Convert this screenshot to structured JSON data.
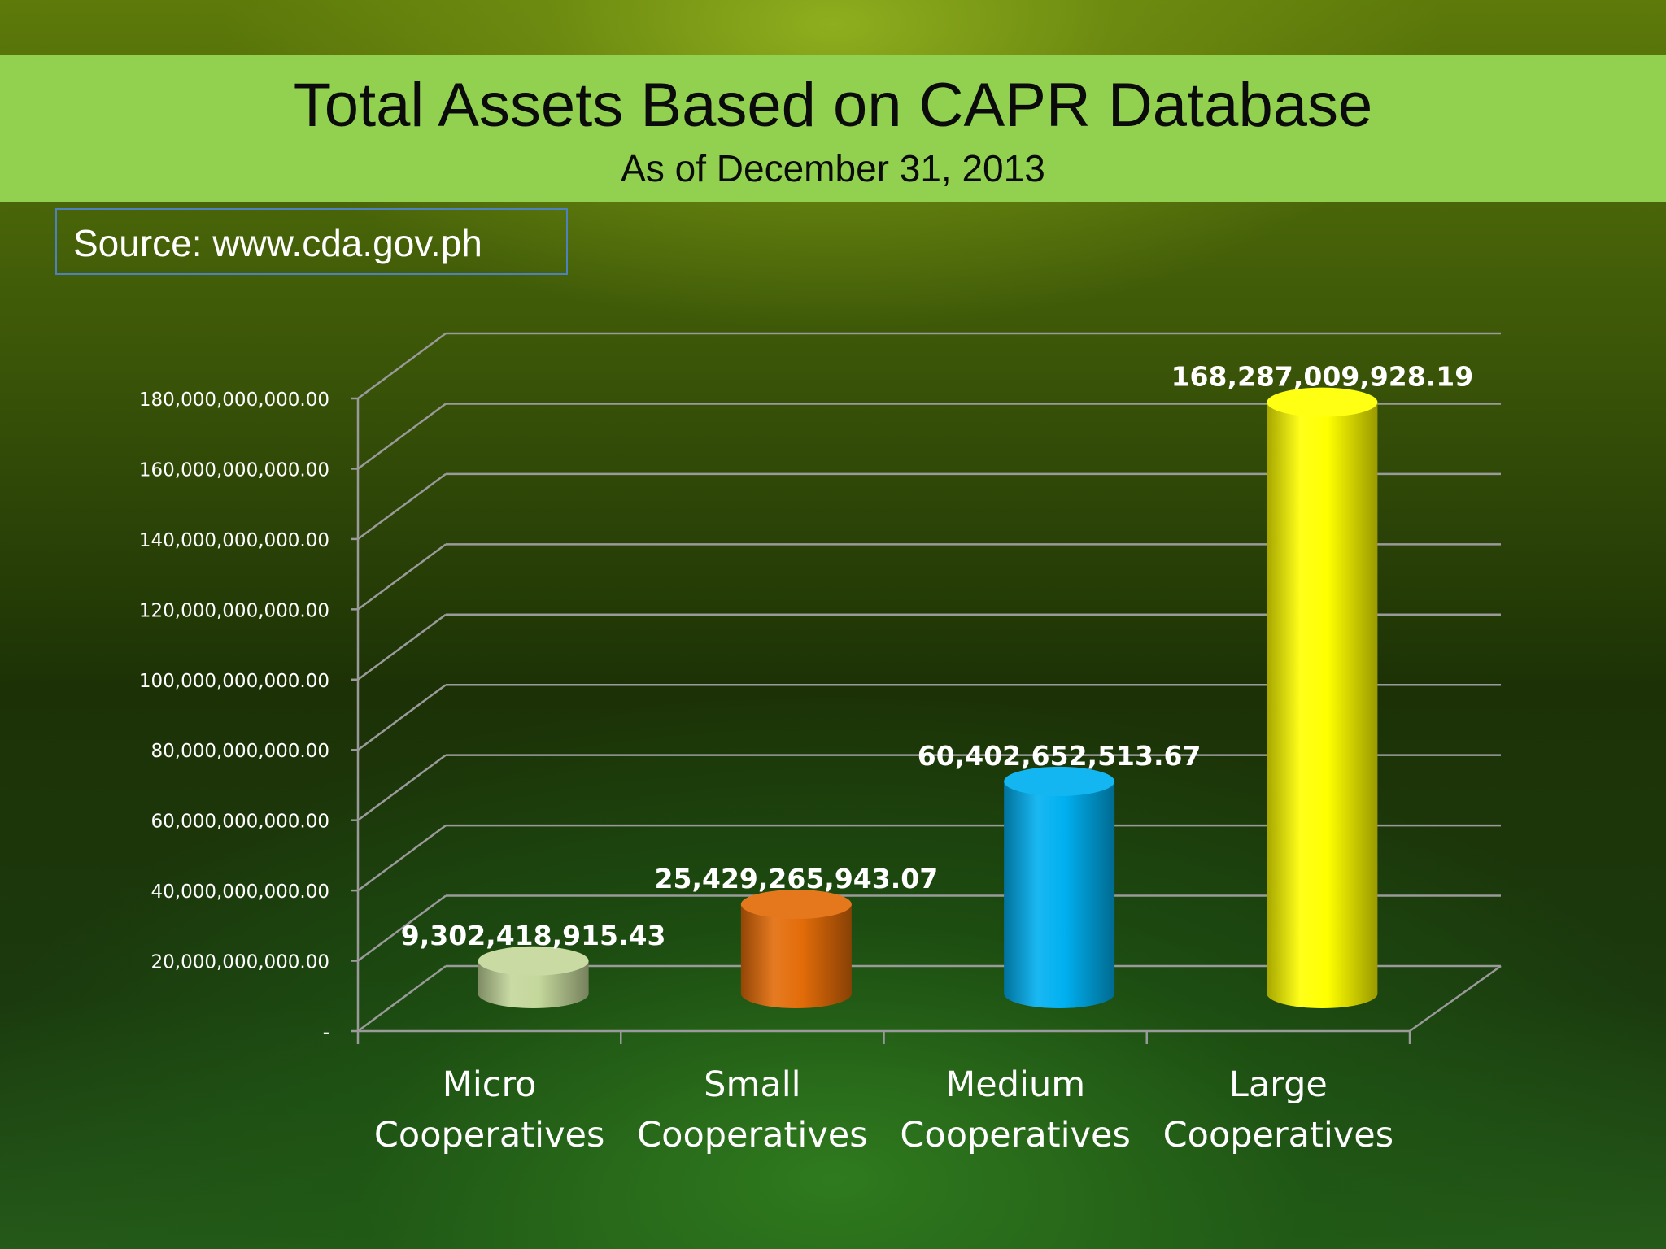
{
  "header": {
    "title": "Total Assets Based on CAPR Database",
    "subtitle": "As of December 31, 2013"
  },
  "source": {
    "label": "Source: www.cda.gov.ph"
  },
  "chart_data": {
    "type": "bar",
    "style": "3d-cylinder",
    "title": "Total Assets Based on CAPR Database",
    "subtitle": "As of December 31, 2013",
    "categories": [
      [
        "Micro",
        "Cooperatives"
      ],
      [
        "Small",
        "Cooperatives"
      ],
      [
        "Medium",
        "Cooperatives"
      ],
      [
        "Large",
        "Cooperatives"
      ]
    ],
    "values": [
      9302418915.43,
      25429265943.07,
      60402652513.67,
      168287009928.19
    ],
    "value_labels": [
      "9,302,418,915.43",
      "25,429,265,943.07",
      "60,402,652,513.67",
      "168,287,009,928.19"
    ],
    "colors": [
      "#c4d79b",
      "#e36c09",
      "#00b0f0",
      "#ffff00"
    ],
    "ylim": [
      0,
      180000000000
    ],
    "y_ticks": [
      0,
      20000000000,
      40000000000,
      60000000000,
      80000000000,
      100000000000,
      120000000000,
      140000000000,
      160000000000,
      180000000000
    ],
    "y_tick_labels": [
      "-",
      "20,000,000,000.00",
      "40,000,000,000.00",
      "60,000,000,000.00",
      "80,000,000,000.00",
      "100,000,000,000.00",
      "120,000,000,000.00",
      "140,000,000,000.00",
      "160,000,000,000.00",
      "180,000,000,000.00"
    ],
    "xlabel": "",
    "ylabel": "",
    "grid": true,
    "legend": "none"
  }
}
